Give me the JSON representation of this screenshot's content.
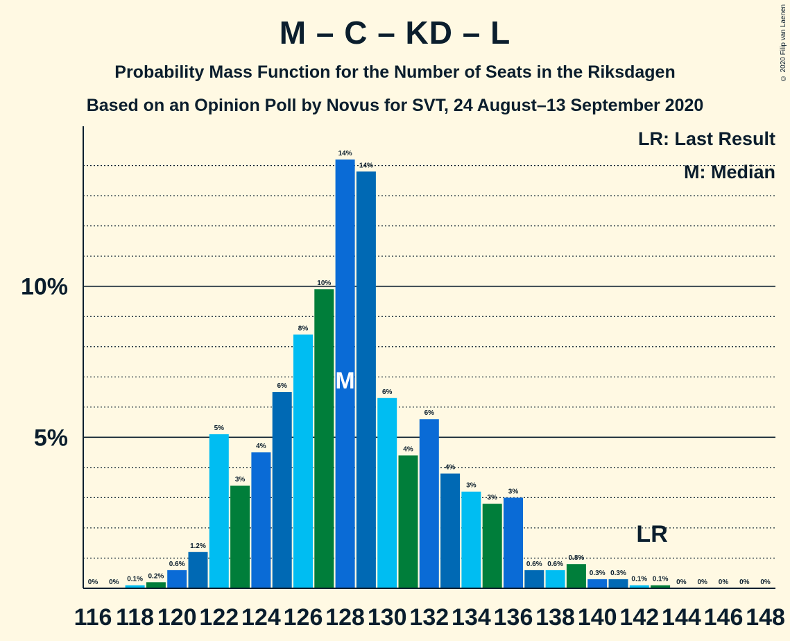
{
  "title": "M – C – KD – L",
  "subtitle": "Probability Mass Function for the Number of Seats in the Riksdagen",
  "subtitle2": "Based on an Opinion Poll by Novus for SVT, 24 August–13 September 2020",
  "copyright": "© 2020 Filip van Laenen",
  "legend": {
    "last_result": "LR: Last Result",
    "median": "M: Median"
  },
  "markers": {
    "median_label": "M",
    "median_seat": 128,
    "last_result_label": "LR",
    "last_result_seat": 143
  },
  "colors": {
    "background": "#FFF9E3",
    "text": "#0B1E2D",
    "series": [
      "#0A6BD6",
      "#0069B4",
      "#00BDF2",
      "#007E3A"
    ]
  },
  "chart_data": {
    "type": "bar",
    "x": [
      116,
      117,
      118,
      119,
      120,
      121,
      122,
      123,
      124,
      125,
      126,
      127,
      128,
      129,
      130,
      131,
      132,
      133,
      134,
      135,
      136,
      137,
      138,
      139,
      140,
      141,
      142,
      143,
      144,
      145,
      146,
      147,
      148
    ],
    "values": [
      0,
      0,
      0.1,
      0.2,
      0.6,
      1.2,
      5.1,
      3.4,
      4.5,
      6.5,
      8.4,
      9.9,
      14.2,
      13.8,
      6.3,
      4.4,
      5.6,
      3.8,
      3.2,
      2.8,
      3.0,
      0.6,
      0.6,
      0.8,
      0.3,
      0.3,
      0.1,
      0.1,
      0,
      0,
      0,
      0,
      0
    ],
    "data_labels": [
      "0%",
      "0%",
      "0.1%",
      "0.2%",
      "0.6%",
      "1.2%",
      "5%",
      "3%",
      "4%",
      "6%",
      "8%",
      "10%",
      "14%",
      "14%",
      "6%",
      "4%",
      "6%",
      "4%",
      "3%",
      "3%",
      "3%",
      "0.6%",
      "0.6%",
      "0.8%",
      "0.3%",
      "0.3%",
      "0.1%",
      "0.1%",
      "0%",
      "0%",
      "0%",
      "0%",
      "0%"
    ],
    "x_tick_labels": [
      "116",
      "118",
      "120",
      "122",
      "124",
      "126",
      "128",
      "130",
      "132",
      "134",
      "136",
      "138",
      "140",
      "142",
      "144",
      "146",
      "148"
    ],
    "y_tick_labels": [
      "5%",
      "10%"
    ],
    "y_ticks": [
      5,
      10
    ],
    "ylim": [
      0,
      15.3
    ],
    "grid": "dotted every 1%, solid at 5% and 10%",
    "legend_position": "top-right",
    "xlabel": "",
    "ylabel": ""
  }
}
